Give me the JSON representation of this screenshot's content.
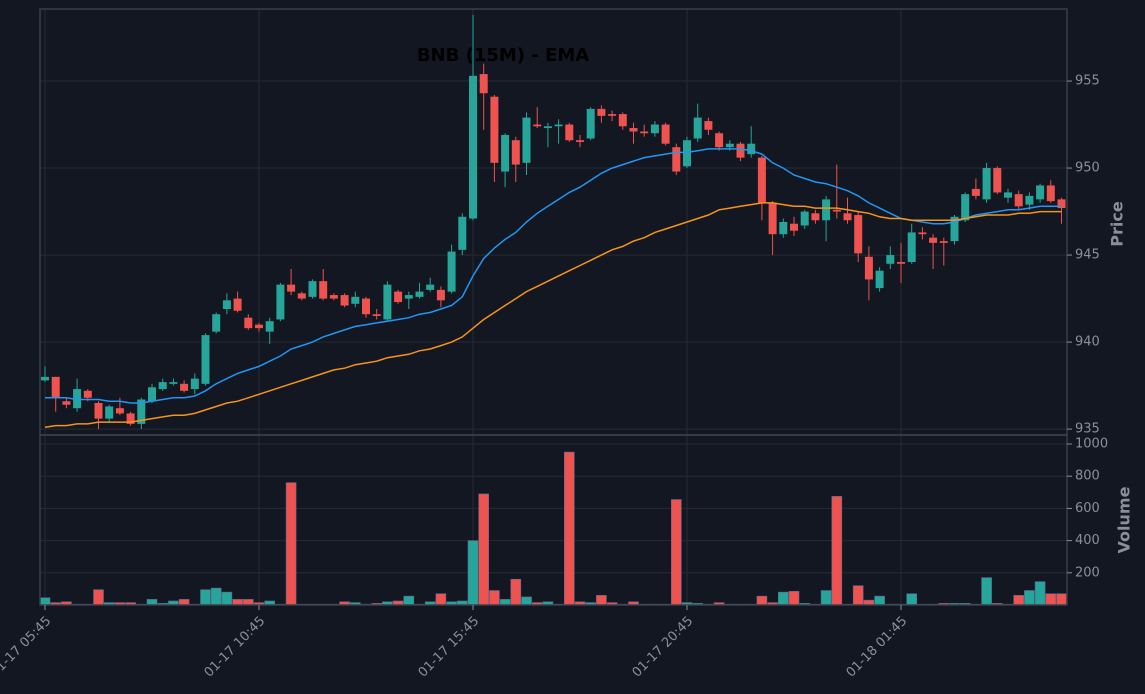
{
  "chart_data": {
    "type": "candlestick",
    "title": "BNB (15M) - EMA",
    "ylabel": "Price",
    "categories": [
      "01-17 05:45",
      null,
      null,
      null,
      null,
      null,
      null,
      null,
      null,
      null,
      null,
      null,
      null,
      null,
      null,
      null,
      null,
      null,
      null,
      null,
      "01-17 10:45",
      null,
      null,
      null,
      null,
      null,
      null,
      null,
      null,
      null,
      null,
      null,
      null,
      null,
      null,
      null,
      null,
      null,
      null,
      null,
      "01-17 15:45",
      null,
      null,
      null,
      null,
      null,
      null,
      null,
      null,
      null,
      null,
      null,
      null,
      null,
      null,
      null,
      null,
      null,
      null,
      null,
      "01-17 20:45",
      null,
      null,
      null,
      null,
      null,
      null,
      null,
      null,
      null,
      null,
      null,
      null,
      null,
      null,
      null,
      null,
      null,
      null,
      null,
      "01-18 01:45",
      null,
      null,
      null,
      null,
      null,
      null,
      null,
      null,
      null,
      null,
      null,
      null,
      null,
      null,
      null
    ],
    "open": [
      937.8,
      938.0,
      936.6,
      936.2,
      937.2,
      936.5,
      935.6,
      936.2,
      935.9,
      935.3,
      936.6,
      937.3,
      937.6,
      937.6,
      937.3,
      937.6,
      940.6,
      941.9,
      942.5,
      941.4,
      941.0,
      940.6,
      941.3,
      943.3,
      942.8,
      942.6,
      943.5,
      942.7,
      942.7,
      942.2,
      942.5,
      941.6,
      941.3,
      942.9,
      942.5,
      942.6,
      943.0,
      943.0,
      942.9,
      945.3,
      947.1,
      955.4,
      954.1,
      949.8,
      951.6,
      950.3,
      952.5,
      952.3,
      952.4,
      952.5,
      951.6,
      951.7,
      953.4,
      953.1,
      953.1,
      952.3,
      952.1,
      952.0,
      952.5,
      951.2,
      950.1,
      951.7,
      952.7,
      952.0,
      951.2,
      951.4,
      950.8,
      950.6,
      948.0,
      946.2,
      946.8,
      946.7,
      947.4,
      947.0,
      947.6,
      947.4,
      947.3,
      944.9,
      943.1,
      944.5,
      944.6,
      944.6,
      946.3,
      946.0,
      945.8,
      945.8,
      947.0,
      948.8,
      948.2,
      950.0,
      948.3,
      948.5,
      947.9,
      948.2,
      949.0,
      948.2
    ],
    "high": [
      938.6,
      938.0,
      936.8,
      937.9,
      937.3,
      936.6,
      936.4,
      936.8,
      936.0,
      936.8,
      937.6,
      937.9,
      937.9,
      937.8,
      938.2,
      940.5,
      941.7,
      942.8,
      942.9,
      941.6,
      941.1,
      941.4,
      943.4,
      944.2,
      942.9,
      943.6,
      944.2,
      942.8,
      942.8,
      942.9,
      942.6,
      941.9,
      943.5,
      943.0,
      942.9,
      943.4,
      943.7,
      943.2,
      945.6,
      947.4,
      958.8,
      956.0,
      954.2,
      952.0,
      951.8,
      953.2,
      953.5,
      952.6,
      952.8,
      952.6,
      951.9,
      953.5,
      953.6,
      953.3,
      953.2,
      952.6,
      952.5,
      952.7,
      952.6,
      951.4,
      951.8,
      953.7,
      952.9,
      952.1,
      951.6,
      951.5,
      952.4,
      950.7,
      948.1,
      947.1,
      947.2,
      947.6,
      947.6,
      948.4,
      950.2,
      948.3,
      947.5,
      945.5,
      944.3,
      945.5,
      945.7,
      946.8,
      946.6,
      946.2,
      946.0,
      947.3,
      948.6,
      949.4,
      950.3,
      950.1,
      948.8,
      948.7,
      948.6,
      949.1,
      949.3,
      948.3
    ],
    "low": [
      937.7,
      936.0,
      936.2,
      936.0,
      936.6,
      935.0,
      935.4,
      935.8,
      935.2,
      935.0,
      936.5,
      937.2,
      937.5,
      937.1,
      937.0,
      937.5,
      940.5,
      941.6,
      941.7,
      940.7,
      940.6,
      939.9,
      941.2,
      942.7,
      942.4,
      942.5,
      942.4,
      942.4,
      942.0,
      942.0,
      941.4,
      941.3,
      941.2,
      942.2,
      941.9,
      942.5,
      942.9,
      942.0,
      942.8,
      945.0,
      947.0,
      952.2,
      949.2,
      948.9,
      949.2,
      949.6,
      952.3,
      951.2,
      951.4,
      951.5,
      951.2,
      951.6,
      952.6,
      952.7,
      952.2,
      951.4,
      951.8,
      951.8,
      951.3,
      949.6,
      950.0,
      951.5,
      951.9,
      951.0,
      951.0,
      950.4,
      950.6,
      947.0,
      945.0,
      946.0,
      946.1,
      946.5,
      946.8,
      945.8,
      947.1,
      946.8,
      944.6,
      942.4,
      942.9,
      944.2,
      943.4,
      944.5,
      945.9,
      944.2,
      944.4,
      945.6,
      946.9,
      948.2,
      948.0,
      948.5,
      948.0,
      947.6,
      947.6,
      948.0,
      948.0,
      946.8
    ],
    "close": [
      938.0,
      936.8,
      936.4,
      937.3,
      936.8,
      935.6,
      936.3,
      935.9,
      935.3,
      936.7,
      937.4,
      937.7,
      937.7,
      937.2,
      937.9,
      940.4,
      941.6,
      942.4,
      941.8,
      940.8,
      940.8,
      941.2,
      943.3,
      942.9,
      942.5,
      943.5,
      942.5,
      942.5,
      942.1,
      942.6,
      941.6,
      941.5,
      943.3,
      942.3,
      942.7,
      942.9,
      943.3,
      942.4,
      945.2,
      947.2,
      955.3,
      954.3,
      950.3,
      951.9,
      950.2,
      952.9,
      952.4,
      952.4,
      952.5,
      951.6,
      951.5,
      953.4,
      953.0,
      953.0,
      952.4,
      952.1,
      952.0,
      952.5,
      951.4,
      949.8,
      951.6,
      952.9,
      952.2,
      951.2,
      951.4,
      950.6,
      951.4,
      948.0,
      946.2,
      946.9,
      946.4,
      947.5,
      947.0,
      948.2,
      947.5,
      947.0,
      945.1,
      943.6,
      944.1,
      945.0,
      944.5,
      946.3,
      946.2,
      945.7,
      945.7,
      947.2,
      948.5,
      948.4,
      950.0,
      948.6,
      948.6,
      947.8,
      948.4,
      949.0,
      948.1,
      947.7
    ],
    "up_color": "#26a69a",
    "down_color": "#ef5350",
    "lines": [
      {
        "color": "#2196f3",
        "values": [
          936.8,
          936.8,
          936.8,
          936.7,
          936.7,
          936.7,
          936.6,
          936.6,
          936.5,
          936.5,
          936.6,
          936.7,
          936.8,
          936.8,
          936.9,
          937.2,
          937.6,
          937.9,
          938.2,
          938.4,
          938.6,
          938.9,
          939.2,
          939.6,
          939.8,
          940.0,
          940.3,
          940.5,
          940.7,
          940.9,
          941.0,
          941.1,
          941.2,
          941.3,
          941.4,
          941.6,
          941.7,
          941.9,
          942.1,
          942.6,
          943.8,
          944.8,
          945.4,
          945.9,
          946.3,
          946.9,
          947.4,
          947.8,
          948.2,
          948.6,
          948.9,
          949.3,
          949.7,
          950.0,
          950.2,
          950.4,
          950.6,
          950.7,
          950.8,
          950.9,
          950.9,
          951.0,
          951.1,
          951.1,
          951.1,
          951.1,
          951.0,
          950.8,
          950.3,
          950.0,
          949.6,
          949.4,
          949.2,
          949.1,
          948.9,
          948.7,
          948.4,
          948.0,
          947.7,
          947.4,
          947.1,
          947.0,
          946.9,
          946.8,
          946.8,
          946.9,
          947.1,
          947.3,
          947.4,
          947.5,
          947.6,
          947.6,
          947.7,
          947.8,
          947.8,
          947.8
        ]
      },
      {
        "color": "#f7931a",
        "values": [
          935.1,
          935.2,
          935.2,
          935.3,
          935.3,
          935.4,
          935.4,
          935.4,
          935.4,
          935.5,
          935.6,
          935.7,
          935.8,
          935.8,
          935.9,
          936.1,
          936.3,
          936.5,
          936.6,
          936.8,
          937.0,
          937.2,
          937.4,
          937.6,
          937.8,
          938.0,
          938.2,
          938.4,
          938.5,
          938.7,
          938.8,
          938.9,
          939.1,
          939.2,
          939.3,
          939.5,
          939.6,
          939.8,
          940.0,
          940.3,
          940.8,
          941.3,
          941.7,
          942.1,
          942.5,
          942.9,
          943.2,
          943.5,
          943.8,
          944.1,
          944.4,
          944.7,
          945.0,
          945.3,
          945.5,
          945.8,
          946.0,
          946.3,
          946.5,
          946.7,
          946.9,
          947.1,
          947.3,
          947.6,
          947.7,
          947.8,
          947.9,
          948.0,
          948.0,
          947.9,
          947.8,
          947.8,
          947.7,
          947.7,
          947.7,
          947.6,
          947.5,
          947.4,
          947.2,
          947.1,
          947.1,
          947.0,
          947.0,
          947.0,
          947.0,
          947.0,
          947.1,
          947.2,
          947.3,
          947.3,
          947.3,
          947.4,
          947.4,
          947.5,
          947.5,
          947.5
        ]
      }
    ],
    "ylim": [
      934.66,
      959.14
    ],
    "yticks": [
      935,
      940,
      945,
      950,
      955
    ],
    "grid": true,
    "volume": {
      "ylabel": "Volume",
      "values": [
        45,
        15,
        20,
        5,
        5,
        95,
        15,
        15,
        15,
        5,
        35,
        10,
        25,
        35,
        5,
        95,
        105,
        80,
        35,
        35,
        15,
        25,
        5,
        760,
        5,
        5,
        5,
        5,
        20,
        15,
        5,
        10,
        20,
        25,
        55,
        5,
        20,
        70,
        20,
        25,
        400,
        690,
        90,
        35,
        160,
        50,
        15,
        20,
        5,
        950,
        20,
        15,
        60,
        15,
        5,
        20,
        5,
        5,
        5,
        655,
        15,
        10,
        5,
        15,
        5,
        5,
        5,
        55,
        15,
        80,
        85,
        10,
        5,
        90,
        675,
        5,
        120,
        30,
        55,
        5,
        5,
        70,
        5,
        5,
        10,
        10,
        10,
        5,
        170,
        10,
        5,
        60,
        90,
        145,
        70,
        70
      ],
      "ylim": [
        0,
        1056
      ],
      "yticks": [
        200,
        400,
        600,
        800,
        1000
      ]
    }
  }
}
